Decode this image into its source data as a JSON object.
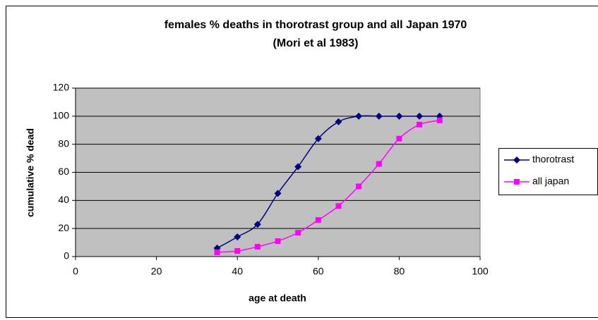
{
  "chart_data": {
    "type": "line",
    "title": [
      "females % deaths in thorotrast group and all Japan 1970",
      "(Mori et al 1983)"
    ],
    "x_label": "age at death",
    "y_label": "cumulative % dead",
    "x": [
      35,
      40,
      45,
      50,
      55,
      60,
      65,
      70,
      75,
      80,
      85,
      90
    ],
    "series": [
      {
        "name": "thorotrast",
        "color": "#000080",
        "marker": "diamond",
        "values": [
          6,
          14,
          23,
          45,
          64,
          84,
          96,
          100,
          100,
          100,
          100,
          100
        ]
      },
      {
        "name": "all japan",
        "color": "#ff00ff",
        "marker": "square",
        "values": [
          3,
          4,
          7,
          11,
          17,
          26,
          36,
          50,
          66,
          84,
          94,
          97
        ]
      }
    ],
    "xlim": [
      0,
      100
    ],
    "xticks": [
      0,
      20,
      40,
      60,
      80,
      100
    ],
    "ylim": [
      0,
      120
    ],
    "yticks": [
      0,
      20,
      40,
      60,
      80,
      100,
      120
    ],
    "grid": true,
    "smooth": true,
    "legend": "right",
    "plot_background": "#c0c0c0"
  }
}
